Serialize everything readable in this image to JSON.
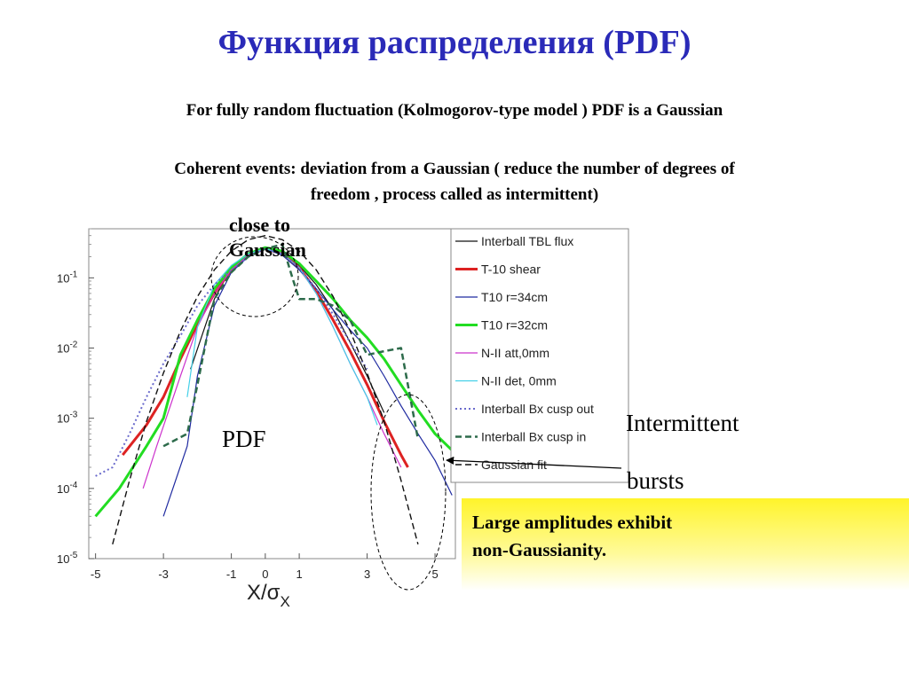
{
  "slide": {
    "title": "Функция распределения (PDF)",
    "line1": "For fully random fluctuation (Kolmogorov-type model   ) PDF is a Gaussian",
    "line2a": "Coherent  events: deviation from a Gaussian  ( reduce   the number of degrees of",
    "line2b": "freedom , process called as  intermittent)",
    "annot_close_a": "close to",
    "annot_close_b": "Gaussian",
    "pdf_label": "PDF",
    "intermittent": "Intermittent",
    "bursts": "bursts",
    "box_line1": "Large amplitudes exhibit",
    "box_line2": "non-Gaussianity."
  },
  "chart_data": {
    "type": "line",
    "title": "",
    "xlabel": "X/σX",
    "ylabel": "",
    "xlim": [
      -5.2,
      5.6
    ],
    "ylim": [
      1e-05,
      0.5
    ],
    "yscale": "log",
    "x_ticks": [
      -5,
      -3,
      -1,
      0,
      1,
      3,
      5
    ],
    "y_ticks": [
      {
        "value": 0.1,
        "base": "10",
        "exp": "-1"
      },
      {
        "value": 0.01,
        "base": "10",
        "exp": "-2"
      },
      {
        "value": 0.001,
        "base": "10",
        "exp": "-3"
      },
      {
        "value": 0.0001,
        "base": "10",
        "exp": "-4"
      },
      {
        "value": 1e-05,
        "base": "10",
        "exp": "-5"
      }
    ],
    "legend_position": "top-right",
    "series": [
      {
        "name": "Interball TBL flux",
        "color": "#111111",
        "style": "solid",
        "width": 1.2,
        "x": [
          -2.2,
          -1.5,
          -1,
          -0.5,
          0,
          0.5,
          1,
          1.5,
          2,
          2.5,
          3,
          3.5
        ],
        "y": [
          0.005,
          0.05,
          0.14,
          0.2,
          0.26,
          0.22,
          0.15,
          0.08,
          0.035,
          0.012,
          0.004,
          0.0012
        ]
      },
      {
        "name": "T-10 shear",
        "color": "#dd2222",
        "style": "solid",
        "width": 3,
        "x": [
          -4.2,
          -3.5,
          -3,
          -2.5,
          -2,
          -1.5,
          -1,
          -0.5,
          0,
          0.5,
          1,
          1.5,
          2,
          2.5,
          3,
          3.5,
          4,
          4.2
        ],
        "y": [
          0.0003,
          0.0008,
          0.002,
          0.007,
          0.022,
          0.06,
          0.13,
          0.22,
          0.26,
          0.22,
          0.14,
          0.065,
          0.025,
          0.009,
          0.003,
          0.0009,
          0.0003,
          0.0002
        ]
      },
      {
        "name": "T10 r=34cm",
        "color": "#1f2aa0",
        "style": "solid",
        "width": 1.2,
        "x": [
          -3,
          -2.3,
          -2,
          -1.5,
          -1,
          -0.5,
          0,
          0.5,
          1,
          1.5,
          2,
          2.5,
          3,
          3.5,
          4,
          4.5,
          5,
          5.5
        ],
        "y": [
          4e-05,
          0.0004,
          0.004,
          0.04,
          0.12,
          0.2,
          0.26,
          0.21,
          0.13,
          0.07,
          0.035,
          0.018,
          0.01,
          0.004,
          0.0015,
          0.0006,
          0.00025,
          8e-05
        ]
      },
      {
        "name": "T10 r=32cm",
        "color": "#22dd22",
        "style": "solid",
        "width": 3,
        "x": [
          -5,
          -4.3,
          -3.5,
          -3,
          -2.5,
          -2,
          -1.5,
          -1,
          -0.5,
          0,
          0.5,
          1,
          1.5,
          2,
          2.5,
          3,
          3.5,
          4,
          4.5,
          5,
          5.5
        ],
        "y": [
          4e-05,
          0.0001,
          0.0004,
          0.001,
          0.008,
          0.025,
          0.07,
          0.14,
          0.22,
          0.27,
          0.24,
          0.16,
          0.09,
          0.05,
          0.025,
          0.014,
          0.007,
          0.003,
          0.0013,
          0.0006,
          0.00035
        ]
      },
      {
        "name": "N-II att,0mm",
        "color": "#cc33cc",
        "style": "solid",
        "width": 1.2,
        "x": [
          -3.6,
          -3.2,
          -2.5,
          -2,
          -1.5,
          -1,
          -0.5,
          0,
          0.5,
          1,
          1.5,
          2,
          2.5,
          3,
          3.5,
          4
        ],
        "y": [
          0.0001,
          0.0004,
          0.004,
          0.02,
          0.06,
          0.13,
          0.21,
          0.26,
          0.22,
          0.14,
          0.06,
          0.02,
          0.006,
          0.002,
          0.0006,
          0.0002
        ]
      },
      {
        "name": "N-II det, 0mm",
        "color": "#44d0e8",
        "style": "solid",
        "width": 1.2,
        "x": [
          -2.3,
          -2,
          -1.5,
          -1,
          -0.5,
          0,
          0.5,
          1,
          1.5,
          2,
          2.5,
          3,
          3.3
        ],
        "y": [
          0.002,
          0.02,
          0.08,
          0.15,
          0.22,
          0.26,
          0.22,
          0.14,
          0.06,
          0.02,
          0.006,
          0.002,
          0.0008
        ]
      },
      {
        "name": "Interball Bx cusp out",
        "color": "#6a6acc",
        "style": "dotted",
        "width": 2,
        "x": [
          -5,
          -4.5,
          -4,
          -3.5,
          -3,
          -2.5,
          -2,
          -1.5,
          -1,
          -0.5,
          0,
          0.5,
          1,
          1.5,
          2,
          2.5,
          3
        ],
        "y": [
          0.00015,
          0.0002,
          0.0006,
          0.002,
          0.006,
          0.015,
          0.04,
          0.08,
          0.13,
          0.2,
          0.26,
          0.22,
          0.14,
          0.07,
          0.03,
          0.012,
          0.005
        ]
      },
      {
        "name": "Interball Bx cusp in",
        "color": "#2d6b4b",
        "style": "dashed",
        "width": 2.5,
        "x": [
          -3,
          -2.3,
          -2,
          -1.5,
          -1,
          -0.5,
          0,
          0.5,
          0.8,
          1,
          1.5,
          2,
          2.5,
          3,
          3.5,
          4,
          4.5
        ],
        "y": [
          0.0004,
          0.0006,
          0.003,
          0.05,
          0.12,
          0.2,
          0.26,
          0.3,
          0.1,
          0.05,
          0.05,
          0.04,
          0.025,
          0.008,
          0.009,
          0.01,
          0.0005
        ]
      },
      {
        "name": "Gaussian fit",
        "color": "#111111",
        "style": "dashed",
        "width": 1.4,
        "x": [
          -4.5,
          -4,
          -3.5,
          -3,
          -2.5,
          -2,
          -1.5,
          -1,
          -0.5,
          0,
          0.5,
          1,
          1.5,
          2,
          2.5,
          3,
          3.5,
          4,
          4.5
        ],
        "y": [
          1.6e-05,
          0.00013,
          0.0009,
          0.0044,
          0.0175,
          0.054,
          0.13,
          0.24,
          0.35,
          0.4,
          0.35,
          0.24,
          0.13,
          0.054,
          0.0175,
          0.0044,
          0.0009,
          0.00013,
          1.6e-05
        ]
      }
    ]
  }
}
